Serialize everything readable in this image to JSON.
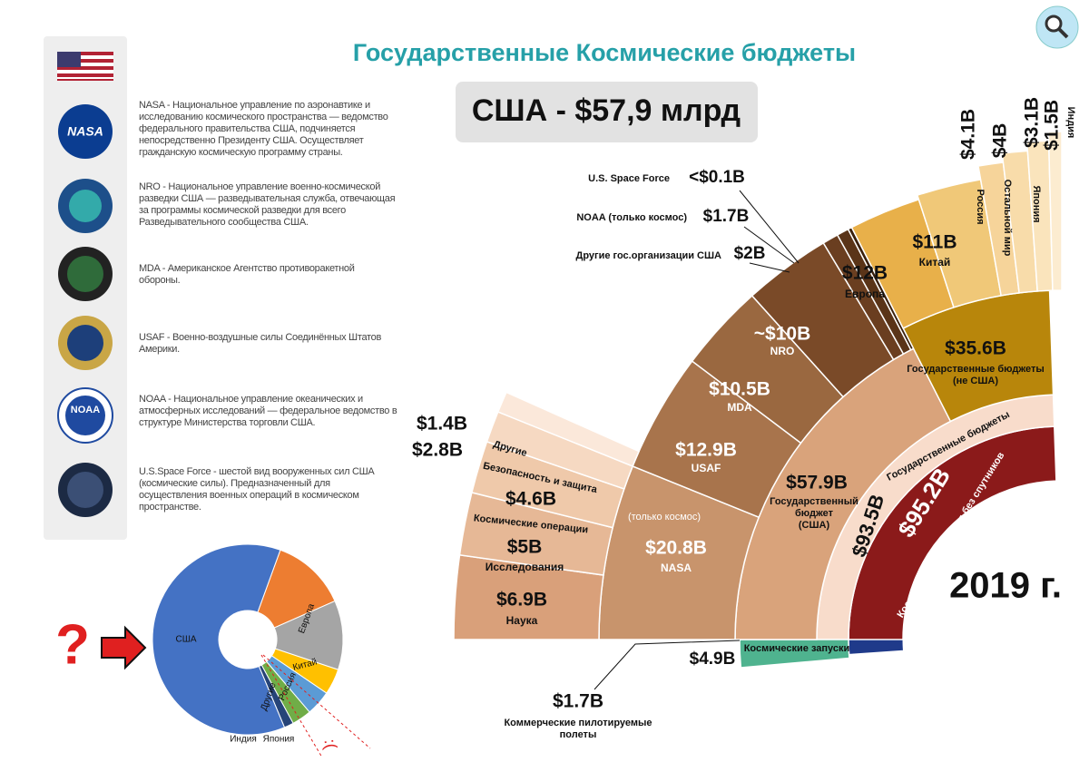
{
  "header": {
    "title": "Государственные Космические бюджеты",
    "subtitle": "США - $57,9 млрд",
    "year": "2019 г."
  },
  "agencies": [
    {
      "logo": "NASA",
      "text": "NASA - Национальное управление по аэронавтике и исследованию космического пространства — ведомство федерального правительства США, подчиняется непосредственно Президенту США. Осуществляет гражданскую космическую программу страны."
    },
    {
      "text": "NRO - Национальное управление военно-космической разведки США — разведывательная служба, отвечающая за программы космической разведки для всего Разведывательного сообщества США."
    },
    {
      "text": "MDA - Американское Агентство противоракетной обороны."
    },
    {
      "text": "USAF - Военно-воздушные силы Соединённых Штатов Америки."
    },
    {
      "logo": "NOAA",
      "text": "NOAA - Национальное управление океанических и атмосферных исследований — федеральное ведомство в структуре Министерства торговли США."
    },
    {
      "text": "U.S.Space Force - шестой вид вооруженных сил США (космические силы). Предназначенный для осуществления военных операций в космическом пространстве."
    }
  ],
  "sunburst": {
    "industry": {
      "value": "$95.2B",
      "label": "Космическая индустрия без спутников"
    },
    "gov_total": {
      "value": "$93.5B",
      "label": "Государственные бюджеты"
    },
    "us": {
      "value": "$57.9B",
      "lines": [
        "Государственный",
        "бюджет",
        "(США)"
      ]
    },
    "nonus": {
      "value": "$35.6B",
      "lines": [
        "Государственные бюджеты",
        "(не США)"
      ]
    },
    "launches": {
      "value": "$4.9B",
      "label": "Космические запуски"
    },
    "nasa": {
      "value": "$20.8B",
      "label": "NASA",
      "note": "(только космос)"
    },
    "usaf": {
      "value": "$12.9B",
      "label": "USAF"
    },
    "mda": {
      "value": "$10.5B",
      "label": "MDA"
    },
    "nro": {
      "value": "~$10B",
      "label": "NRO"
    },
    "other_gov": {
      "value": "$2B",
      "label": "Другие гос.организации США"
    },
    "noaa": {
      "value": "$1.7B",
      "label": "NOAA (только космос)"
    },
    "sf": {
      "value": "<$0.1B",
      "label": "U.S. Space Force"
    },
    "europe": {
      "value": "$12B",
      "label": "Европа"
    },
    "china": {
      "value": "$11B",
      "label": "Китай"
    },
    "russia": {
      "value": "$4.1B",
      "label": "Россия"
    },
    "rest": {
      "value": "$4B",
      "label": "Остальной мир"
    },
    "japan": {
      "value": "$3.1B",
      "label": "Япония"
    },
    "india": {
      "value": "$1.5B",
      "label": "Индия"
    },
    "science": {
      "value": "$6.9B",
      "label": "Наука"
    },
    "research": {
      "value": "$5B",
      "label": "Исследования"
    },
    "ops": {
      "value": "$4.6B",
      "label": "Космические операции"
    },
    "security": {
      "value": "$2.8B",
      "label": "Безопасность и защита"
    },
    "others": {
      "value": "$1.4B",
      "label": "Другие"
    },
    "commercial": {
      "value": "$1.7B",
      "lines": [
        "Коммерческие пилотируемые",
        "полеты"
      ]
    }
  },
  "donut": {
    "categories": [
      "Европа",
      "Китай",
      "Россия",
      "Другие",
      "Япония",
      "Индия",
      "США"
    ],
    "values": [
      12,
      11,
      4.1,
      4,
      3.1,
      1.5,
      57.9
    ],
    "colors": [
      "#ed7d31",
      "#a5a5a5",
      "#ffc000",
      "#5b9bd5",
      "#70ad47",
      "#264478",
      "#4472c4"
    ]
  },
  "marks": {
    "question": "?",
    "sad": ":("
  }
}
